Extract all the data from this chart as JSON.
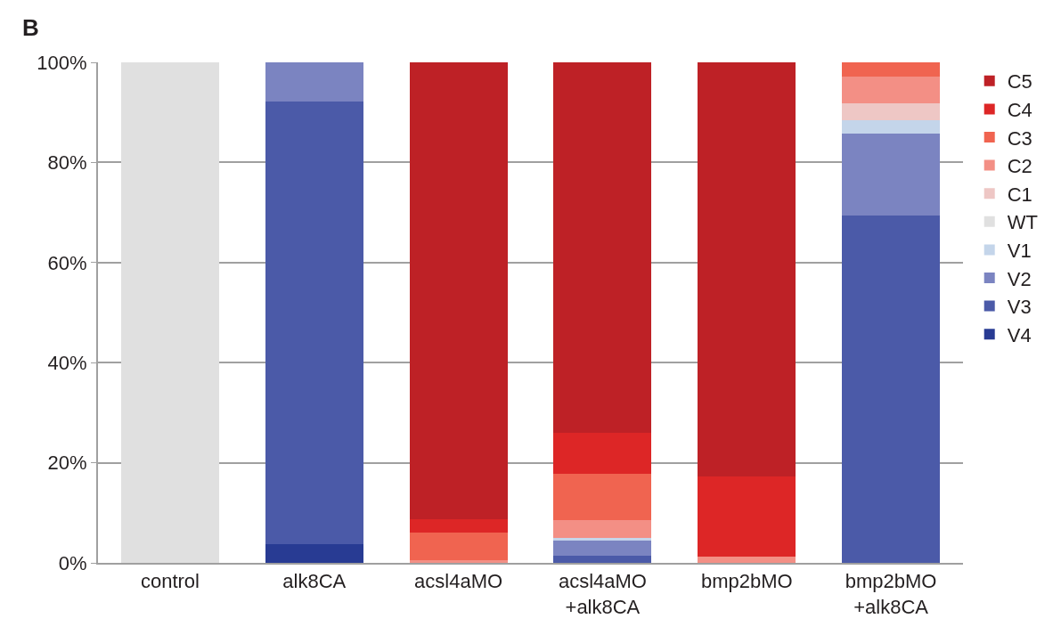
{
  "chart_data": {
    "type": "bar",
    "stacked": true,
    "annotations": [
      "B"
    ],
    "categories": [
      "control",
      "alk8CA",
      "acsl4aMO",
      "acsl4aMO\n+alk8CA",
      "bmp2bMO",
      "bmp2bMO\n+alk8CA"
    ],
    "series": [
      {
        "name": "V4",
        "color": "#283b93",
        "values": [
          0,
          3.8,
          0,
          0,
          0,
          0
        ]
      },
      {
        "name": "V3",
        "color": "#4b5aa8",
        "values": [
          0,
          88.4,
          0,
          1.4,
          0,
          69.4
        ]
      },
      {
        "name": "V2",
        "color": "#7b84c1",
        "values": [
          0,
          7.8,
          0,
          3.1,
          0,
          16.4
        ]
      },
      {
        "name": "V1",
        "color": "#c4d5ea",
        "values": [
          0,
          0,
          0,
          0.4,
          0,
          2.7
        ]
      },
      {
        "name": "WT",
        "color": "#e0e0e0",
        "values": [
          100,
          0,
          0,
          0,
          0,
          0
        ]
      },
      {
        "name": "C1",
        "color": "#eec7c5",
        "values": [
          0,
          0,
          0,
          0,
          0,
          3.4
        ]
      },
      {
        "name": "C2",
        "color": "#f38f85",
        "values": [
          0,
          0,
          0.5,
          3.6,
          1.3,
          5.3
        ]
      },
      {
        "name": "C3",
        "color": "#f06450",
        "values": [
          0,
          0,
          5.6,
          9.3,
          0,
          2.8
        ]
      },
      {
        "name": "C4",
        "color": "#dd2626",
        "values": [
          0,
          0,
          2.6,
          8.2,
          15.9,
          0
        ]
      },
      {
        "name": "C5",
        "color": "#be2126",
        "values": [
          0,
          0,
          91.3,
          74.0,
          82.8,
          0
        ]
      }
    ],
    "ylim": [
      0,
      100
    ],
    "yticks": [
      {
        "value": 0,
        "label": "0%"
      },
      {
        "value": 20,
        "label": "20%"
      },
      {
        "value": 40,
        "label": "40%"
      },
      {
        "value": 60,
        "label": "60%"
      },
      {
        "value": 80,
        "label": "80%"
      },
      {
        "value": 100,
        "label": "100%"
      }
    ],
    "grid": "y",
    "legend": "right"
  }
}
